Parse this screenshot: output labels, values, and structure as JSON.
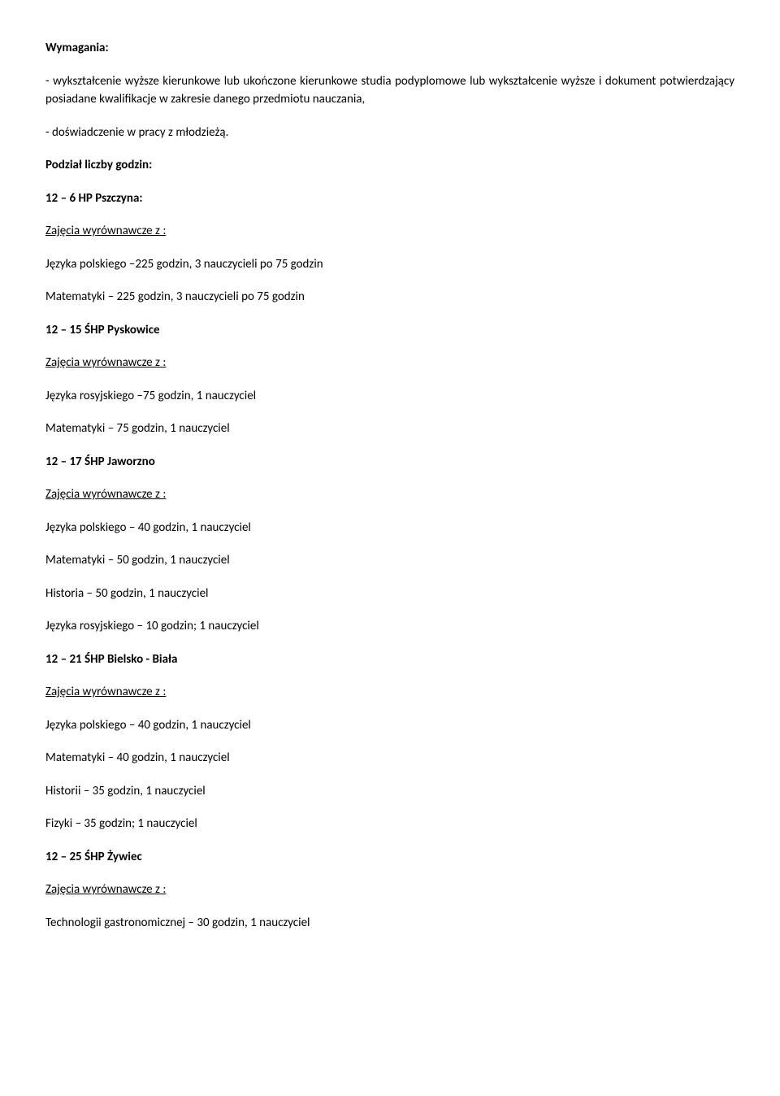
{
  "req_heading": "Wymagania:",
  "req_line1": "- wykształcenie wyższe kierunkowe lub ukończone kierunkowe studia podyplomowe lub wykształcenie wyższe i dokument potwierdzający posiadane kwalifikacje w zakresie danego przedmiotu nauczania,",
  "req_line2": "- doświadczenie w pracy z młodzieżą.",
  "division_heading": "Podział liczby godzin:",
  "s1_title": "12 – 6 HP Pszczyna:",
  "s1_sub": "Zajęcia wyrównawcze z :",
  "s1_l1": "Języka polskiego –225 godzin, 3 nauczycieli po 75 godzin",
  "s1_l2": "Matematyki – 225 godzin, 3 nauczycieli po 75 godzin",
  "s2_title": "12 – 15 ŚHP Pyskowice",
  "s2_sub": "Zajęcia wyrównawcze z :",
  "s2_l1": "Języka rosyjskiego –75 godzin, 1 nauczyciel",
  "s2_l2": "Matematyki – 75 godzin, 1 nauczyciel",
  "s3_title": "12 – 17 ŚHP Jaworzno",
  "s3_sub": "Zajęcia wyrównawcze z :",
  "s3_l1": "Języka polskiego – 40 godzin, 1 nauczyciel",
  "s3_l2": "Matematyki – 50 godzin, 1 nauczyciel",
  "s3_l3": "Historia – 50 godzin, 1 nauczyciel",
  "s3_l4": "Języka rosyjskiego – 10 godzin; 1 nauczyciel",
  "s4_title": "12 – 21 ŚHP Bielsko - Biała",
  "s4_sub": "Zajęcia wyrównawcze z :",
  "s4_l1": "Języka polskiego – 40 godzin, 1 nauczyciel",
  "s4_l2": "Matematyki – 40 godzin, 1 nauczyciel",
  "s4_l3": "Historii – 35 godzin, 1 nauczyciel",
  "s4_l4": "Fizyki – 35 godzin; 1 nauczyciel",
  "s5_title": "12 – 25 ŚHP Żywiec",
  "s5_sub": "Zajęcia wyrównawcze z :",
  "s5_l1": "Technologii gastronomicznej – 30 godzin, 1 nauczyciel"
}
